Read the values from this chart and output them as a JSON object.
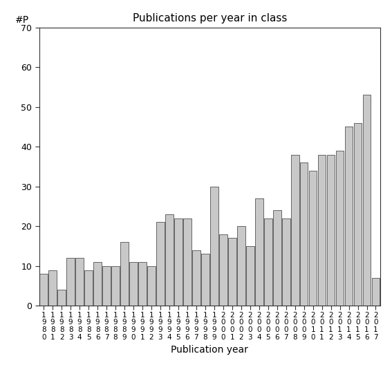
{
  "title": "Publications per year in class",
  "xlabel": "Publication year",
  "ylabel": "#P",
  "years": [
    1980,
    1981,
    1982,
    1983,
    1984,
    1985,
    1986,
    1987,
    1988,
    1989,
    1990,
    1991,
    1992,
    1993,
    1994,
    1995,
    1996,
    1997,
    1998,
    1999,
    2000,
    2001,
    2002,
    2003,
    2004,
    2005,
    2006,
    2007,
    2008,
    2009,
    2010,
    2011,
    2012,
    2013,
    2014,
    2015,
    2016,
    2017
  ],
  "values": [
    8,
    9,
    4,
    12,
    12,
    9,
    11,
    10,
    10,
    16,
    11,
    11,
    10,
    21,
    23,
    22,
    22,
    14,
    13,
    30,
    18,
    17,
    20,
    15,
    27,
    22,
    24,
    22,
    38,
    36,
    34,
    38,
    38,
    39,
    45,
    46,
    53,
    7
  ],
  "ylim": [
    0,
    70
  ],
  "yticks": [
    0,
    10,
    20,
    30,
    40,
    50,
    60,
    70
  ],
  "bar_color": "#c8c8c8",
  "bar_edge_color": "#333333",
  "background_color": "#ffffff",
  "figsize": [
    5.67,
    5.67
  ],
  "dpi": 100
}
